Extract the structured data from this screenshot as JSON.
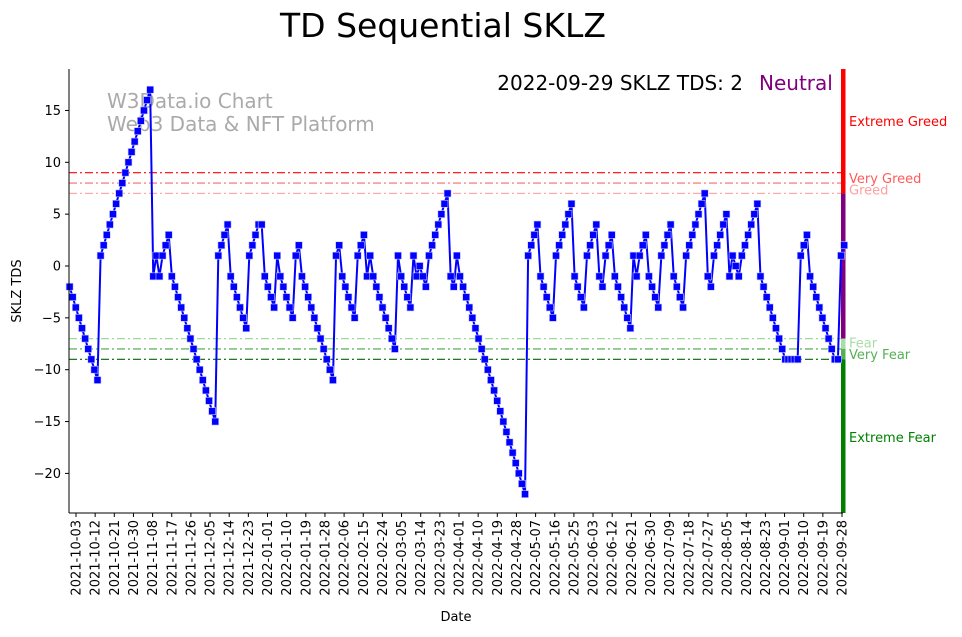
{
  "chart_data": {
    "type": "line",
    "title": "TD Sequential SKLZ",
    "xlabel": "Date",
    "ylabel": "SKLZ TDS",
    "ylim": [
      -24,
      19
    ],
    "yticks": [
      15,
      10,
      5,
      0,
      -5,
      -10,
      -15,
      -20
    ],
    "grid": false,
    "watermark": [
      "W3Data.io Chart",
      "Web3 Data & NFT Platform"
    ],
    "annotation": {
      "text": "2022-09-29 SKLZ TDS: 2",
      "status": "Neutral",
      "status_color": "#800080"
    },
    "start_date": "2021-09-30",
    "end_date": "2022-09-29",
    "frequency": "trading days",
    "series": [
      {
        "name": "SKLZ TDS",
        "color": "#0000ff",
        "marker": "square",
        "values": [
          -2,
          -3,
          -4,
          -5,
          -6,
          -7,
          -8,
          -9,
          -10,
          -11,
          1,
          2,
          3,
          4,
          5,
          6,
          7,
          8,
          9,
          10,
          11,
          12,
          13,
          14,
          15,
          16,
          17,
          -1,
          1,
          -1,
          1,
          2,
          3,
          -1,
          -2,
          -3,
          -4,
          -5,
          -6,
          -7,
          -8,
          -9,
          -10,
          -11,
          -12,
          -13,
          -14,
          -15,
          1,
          2,
          3,
          4,
          -1,
          -2,
          -3,
          -4,
          -5,
          -6,
          1,
          2,
          3,
          4,
          4,
          -1,
          -2,
          -3,
          -4,
          1,
          -1,
          -2,
          -3,
          -4,
          -5,
          1,
          2,
          -1,
          -2,
          -3,
          -4,
          -5,
          -6,
          -7,
          -8,
          -9,
          -10,
          -11,
          1,
          2,
          -1,
          -2,
          -3,
          -4,
          -5,
          1,
          2,
          3,
          -1,
          1,
          -1,
          -2,
          -3,
          -4,
          -5,
          -6,
          -7,
          -8,
          1,
          -1,
          -2,
          -3,
          -4,
          1,
          -1,
          0,
          -1,
          -2,
          1,
          2,
          3,
          4,
          5,
          6,
          7,
          -1,
          -2,
          1,
          -1,
          -2,
          -3,
          -4,
          -5,
          -6,
          -7,
          -8,
          -9,
          -10,
          -11,
          -12,
          -13,
          -14,
          -15,
          -16,
          -17,
          -18,
          -19,
          -20,
          -21,
          -22,
          1,
          2,
          3,
          4,
          -1,
          -2,
          -3,
          -4,
          -5,
          1,
          2,
          3,
          4,
          5,
          6,
          -1,
          -2,
          -3,
          -4,
          1,
          2,
          3,
          4,
          -1,
          -2,
          1,
          2,
          3,
          -1,
          -2,
          -3,
          -4,
          -5,
          -6,
          1,
          -1,
          1,
          2,
          3,
          -1,
          -2,
          -3,
          -4,
          1,
          2,
          3,
          4,
          -1,
          -2,
          -3,
          -4,
          1,
          2,
          3,
          4,
          5,
          6,
          7,
          -1,
          -2,
          1,
          2,
          3,
          4,
          5,
          -1,
          1,
          0,
          -1,
          1,
          2,
          3,
          4,
          5,
          6,
          -1,
          -2,
          -3,
          -4,
          -5,
          -6,
          -7,
          -8,
          -9,
          -9,
          -9,
          -9,
          -9,
          1,
          2,
          3,
          -1,
          -2,
          -3,
          -4,
          -5,
          -6,
          -7,
          -8,
          -9,
          -9,
          1,
          2
        ]
      }
    ],
    "xticks": [
      "2021-10-03",
      "2021-10-12",
      "2021-10-21",
      "2021-10-30",
      "2021-11-08",
      "2021-11-17",
      "2021-11-26",
      "2021-12-05",
      "2021-12-14",
      "2021-12-23",
      "2022-01-01",
      "2022-01-10",
      "2022-01-19",
      "2022-01-28",
      "2022-02-06",
      "2022-02-15",
      "2022-02-24",
      "2022-03-05",
      "2022-03-14",
      "2022-03-23",
      "2022-04-01",
      "2022-04-10",
      "2022-04-19",
      "2022-04-28",
      "2022-05-07",
      "2022-05-16",
      "2022-05-25",
      "2022-06-03",
      "2022-06-12",
      "2022-06-21",
      "2022-06-30",
      "2022-07-09",
      "2022-07-18",
      "2022-07-27",
      "2022-08-05",
      "2022-08-14",
      "2022-08-23",
      "2022-09-01",
      "2022-09-10",
      "2022-09-19",
      "2022-09-28"
    ],
    "thresholds": [
      {
        "label": "Very Greed",
        "value": 9,
        "color": "#ff0000"
      },
      {
        "label": "Very Greed",
        "value": 8,
        "color": "#ff6666"
      },
      {
        "label": "Greed",
        "value": 7,
        "color": "#ffaaaa"
      },
      {
        "label": "Fear",
        "value": -7,
        "color": "#99dd99"
      },
      {
        "label": "Very Fear",
        "value": -8,
        "color": "#44aa44"
      },
      {
        "label": "Extreme Fear",
        "value": -9,
        "color": "#006400"
      }
    ],
    "zones": [
      {
        "label": "Extreme Greed",
        "from": 7,
        "to": 19,
        "color": "#ff0000",
        "text_color": "#ff0000",
        "label_value": 14
      },
      {
        "label": "Very Greed",
        "from": 7,
        "to": 7,
        "color": "#ff5555",
        "text_color": "#ff5a5a",
        "label_value": 8.5
      },
      {
        "label": "Greed",
        "from": 7,
        "to": 7,
        "color": "#ff9999",
        "text_color": "#ffa0a0",
        "label_value": 7.4
      },
      {
        "label": "Neutral",
        "from": -7,
        "to": 7,
        "color": "#800080",
        "text_color": "#800080",
        "label_value": null
      },
      {
        "label": "Fear",
        "from": -8,
        "to": -7,
        "color": "#a8dca8",
        "text_color": "#a8dca8",
        "label_value": -7.4
      },
      {
        "label": "Very Fear",
        "from": -9,
        "to": -8,
        "color": "#55b055",
        "text_color": "#55b055",
        "label_value": -8.5
      },
      {
        "label": "Extreme Fear",
        "from": -24,
        "to": -9,
        "color": "#008000",
        "text_color": "#008000",
        "label_value": -16.5
      }
    ]
  }
}
